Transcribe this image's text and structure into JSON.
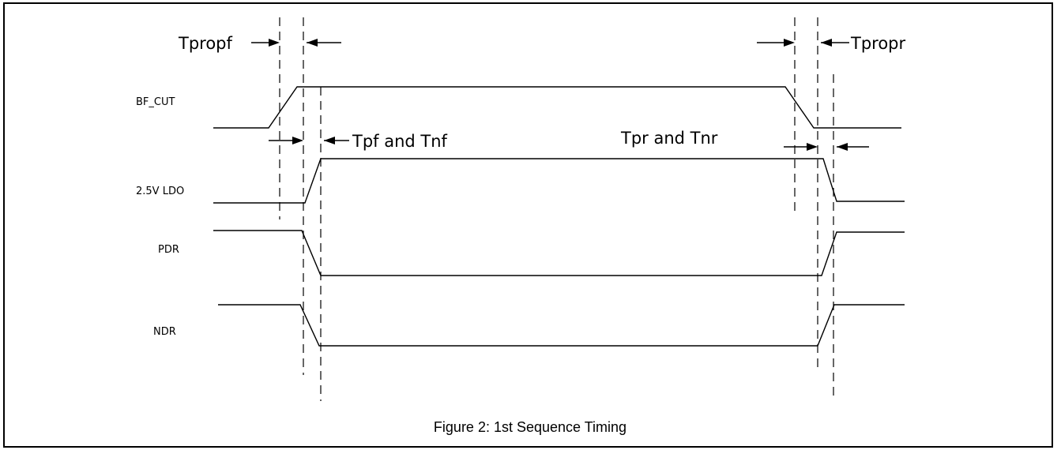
{
  "signals": [
    {
      "id": "bf_cut",
      "label": "BF_CUT"
    },
    {
      "id": "ldo",
      "label": "2.5V LDO"
    },
    {
      "id": "pdr",
      "label": "PDR"
    },
    {
      "id": "ndr",
      "label": "NDR"
    }
  ],
  "timing_labels": {
    "tpropf": "Tpropf",
    "tpropr": "Tpropr",
    "tpf_tnf": "Tpf and Tnf",
    "tpr_tnr": "Tpr and Tnr"
  },
  "caption": "Figure 2: 1st  Sequence Timing"
}
